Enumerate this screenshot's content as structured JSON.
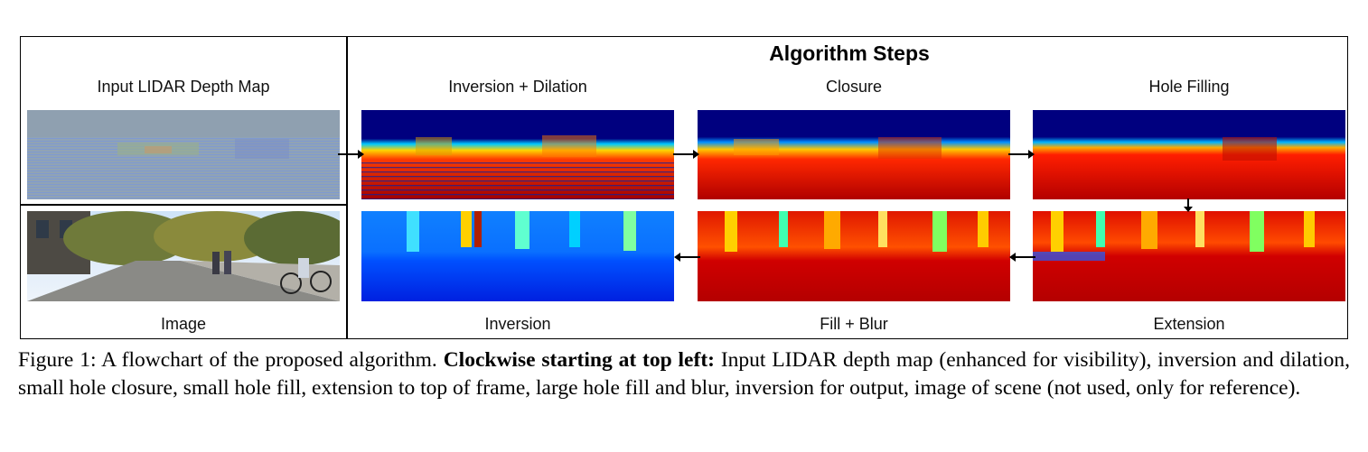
{
  "header": {
    "title": "Algorithm Steps"
  },
  "panels": {
    "input": "Input LIDAR Depth Map",
    "image": "Image",
    "inversion_dilation": "Inversion + Dilation",
    "closure": "Closure",
    "hole_filling": "Hole Filling",
    "inversion": "Inversion",
    "fill_blur": "Fill + Blur",
    "extension": "Extension"
  },
  "caption": {
    "prefix": "Figure 1: A flowchart of the proposed algorithm.",
    "bold": "Clockwise starting at top left:",
    "rest": "Input LIDAR depth map (enhanced for visibility), inversion and dilation, small hole closure, small hole fill, extension to top of frame, large hole fill and blur, inversion for output, image of scene (not used, only for reference)."
  },
  "colors": {
    "depth_far": "#00007f",
    "depth_near": "#b40000",
    "inverted_sky": "#0a7cff",
    "lidar_bg": "#8fa0b0"
  }
}
